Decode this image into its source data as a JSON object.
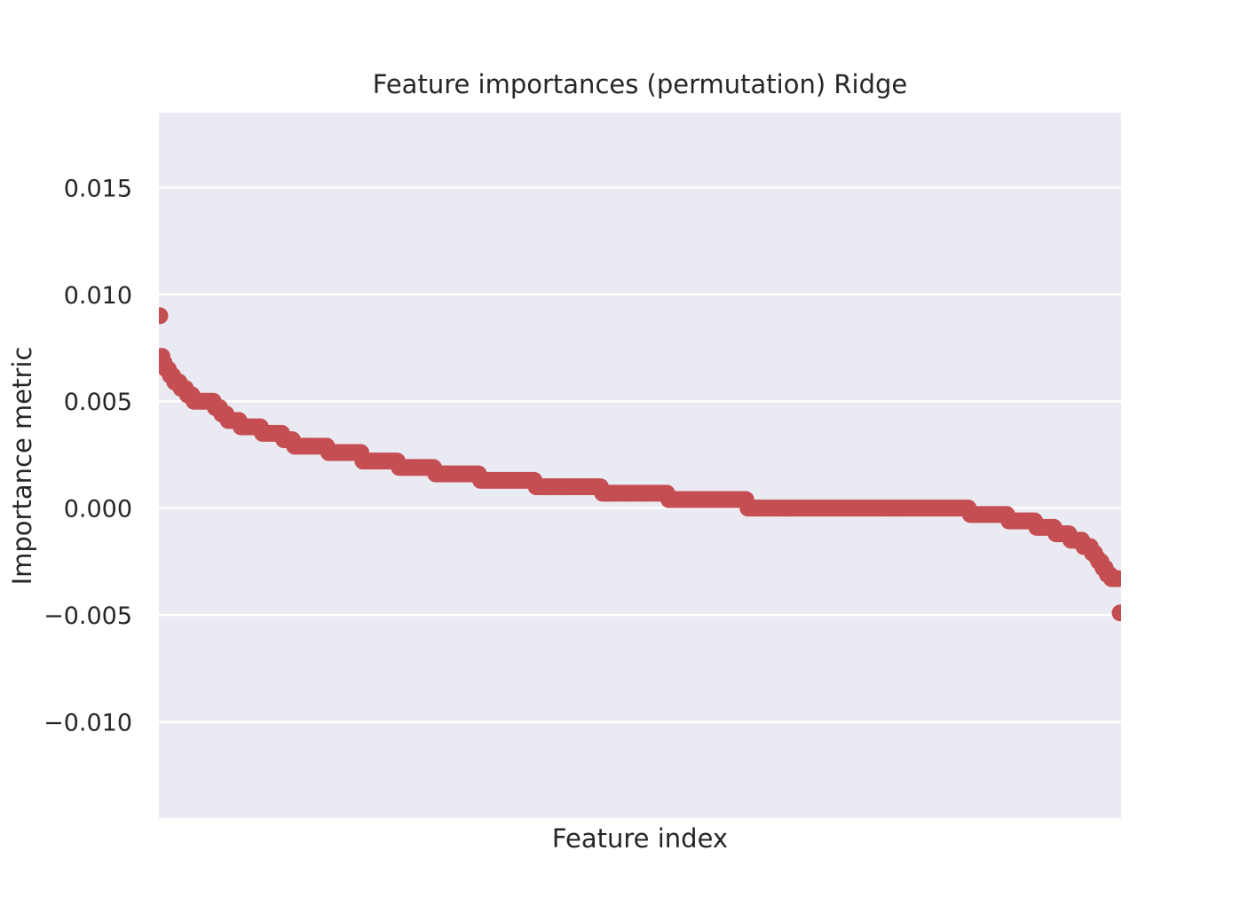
{
  "chart_data": {
    "type": "scatter",
    "title": "Feature importances (permutation) Ridge",
    "xlabel": "Feature index",
    "ylabel": "Importance metric",
    "ylim": [
      -0.0145,
      0.0185
    ],
    "xlim": [
      0,
      449
    ],
    "yticks": [
      -0.01,
      -0.005,
      0.0,
      0.005,
      0.01,
      0.015
    ],
    "ytick_labels": [
      "−0.010",
      "−0.005",
      "0.000",
      "0.005",
      "0.010",
      "0.015"
    ],
    "xticks": [],
    "grid": true,
    "n_points": 450,
    "marker_color": "#C44E52",
    "background_color": "#EAEAF2",
    "segments": [
      {
        "x_start": 0,
        "x_end": 0,
        "value": 0.009
      },
      {
        "x_start": 1,
        "x_end": 1,
        "value": 0.0071
      },
      {
        "x_start": 2,
        "x_end": 2,
        "value": 0.0068
      },
      {
        "x_start": 3,
        "x_end": 4,
        "value": 0.0065
      },
      {
        "x_start": 5,
        "x_end": 6,
        "value": 0.0062
      },
      {
        "x_start": 7,
        "x_end": 9,
        "value": 0.0059
      },
      {
        "x_start": 10,
        "x_end": 12,
        "value": 0.0056
      },
      {
        "x_start": 13,
        "x_end": 15,
        "value": 0.0053
      },
      {
        "x_start": 16,
        "x_end": 25,
        "value": 0.005
      },
      {
        "x_start": 26,
        "x_end": 28,
        "value": 0.0047
      },
      {
        "x_start": 29,
        "x_end": 31,
        "value": 0.0044
      },
      {
        "x_start": 32,
        "x_end": 37,
        "value": 0.0041
      },
      {
        "x_start": 38,
        "x_end": 47,
        "value": 0.0038
      },
      {
        "x_start": 48,
        "x_end": 57,
        "value": 0.0035
      },
      {
        "x_start": 58,
        "x_end": 62,
        "value": 0.0032
      },
      {
        "x_start": 63,
        "x_end": 78,
        "value": 0.0029
      },
      {
        "x_start": 79,
        "x_end": 94,
        "value": 0.0026
      },
      {
        "x_start": 95,
        "x_end": 111,
        "value": 0.0022
      },
      {
        "x_start": 112,
        "x_end": 128,
        "value": 0.0019
      },
      {
        "x_start": 129,
        "x_end": 149,
        "value": 0.0016
      },
      {
        "x_start": 150,
        "x_end": 175,
        "value": 0.0013
      },
      {
        "x_start": 176,
        "x_end": 206,
        "value": 0.001
      },
      {
        "x_start": 207,
        "x_end": 237,
        "value": 0.0007
      },
      {
        "x_start": 238,
        "x_end": 274,
        "value": 0.0004
      },
      {
        "x_start": 275,
        "x_end": 378,
        "value": 0.0
      },
      {
        "x_start": 379,
        "x_end": 396,
        "value": -0.0003
      },
      {
        "x_start": 397,
        "x_end": 409,
        "value": -0.0006
      },
      {
        "x_start": 410,
        "x_end": 418,
        "value": -0.0009
      },
      {
        "x_start": 419,
        "x_end": 425,
        "value": -0.0012
      },
      {
        "x_start": 426,
        "x_end": 431,
        "value": -0.0015
      },
      {
        "x_start": 432,
        "x_end": 435,
        "value": -0.0018
      },
      {
        "x_start": 436,
        "x_end": 437,
        "value": -0.0021
      },
      {
        "x_start": 438,
        "x_end": 438,
        "value": -0.0023
      },
      {
        "x_start": 439,
        "x_end": 440,
        "value": -0.0025
      },
      {
        "x_start": 441,
        "x_end": 442,
        "value": -0.0028
      },
      {
        "x_start": 443,
        "x_end": 444,
        "value": -0.0031
      },
      {
        "x_start": 445,
        "x_end": 448,
        "value": -0.0033
      },
      {
        "x_start": 449,
        "x_end": 449,
        "value": -0.0049
      }
    ]
  }
}
